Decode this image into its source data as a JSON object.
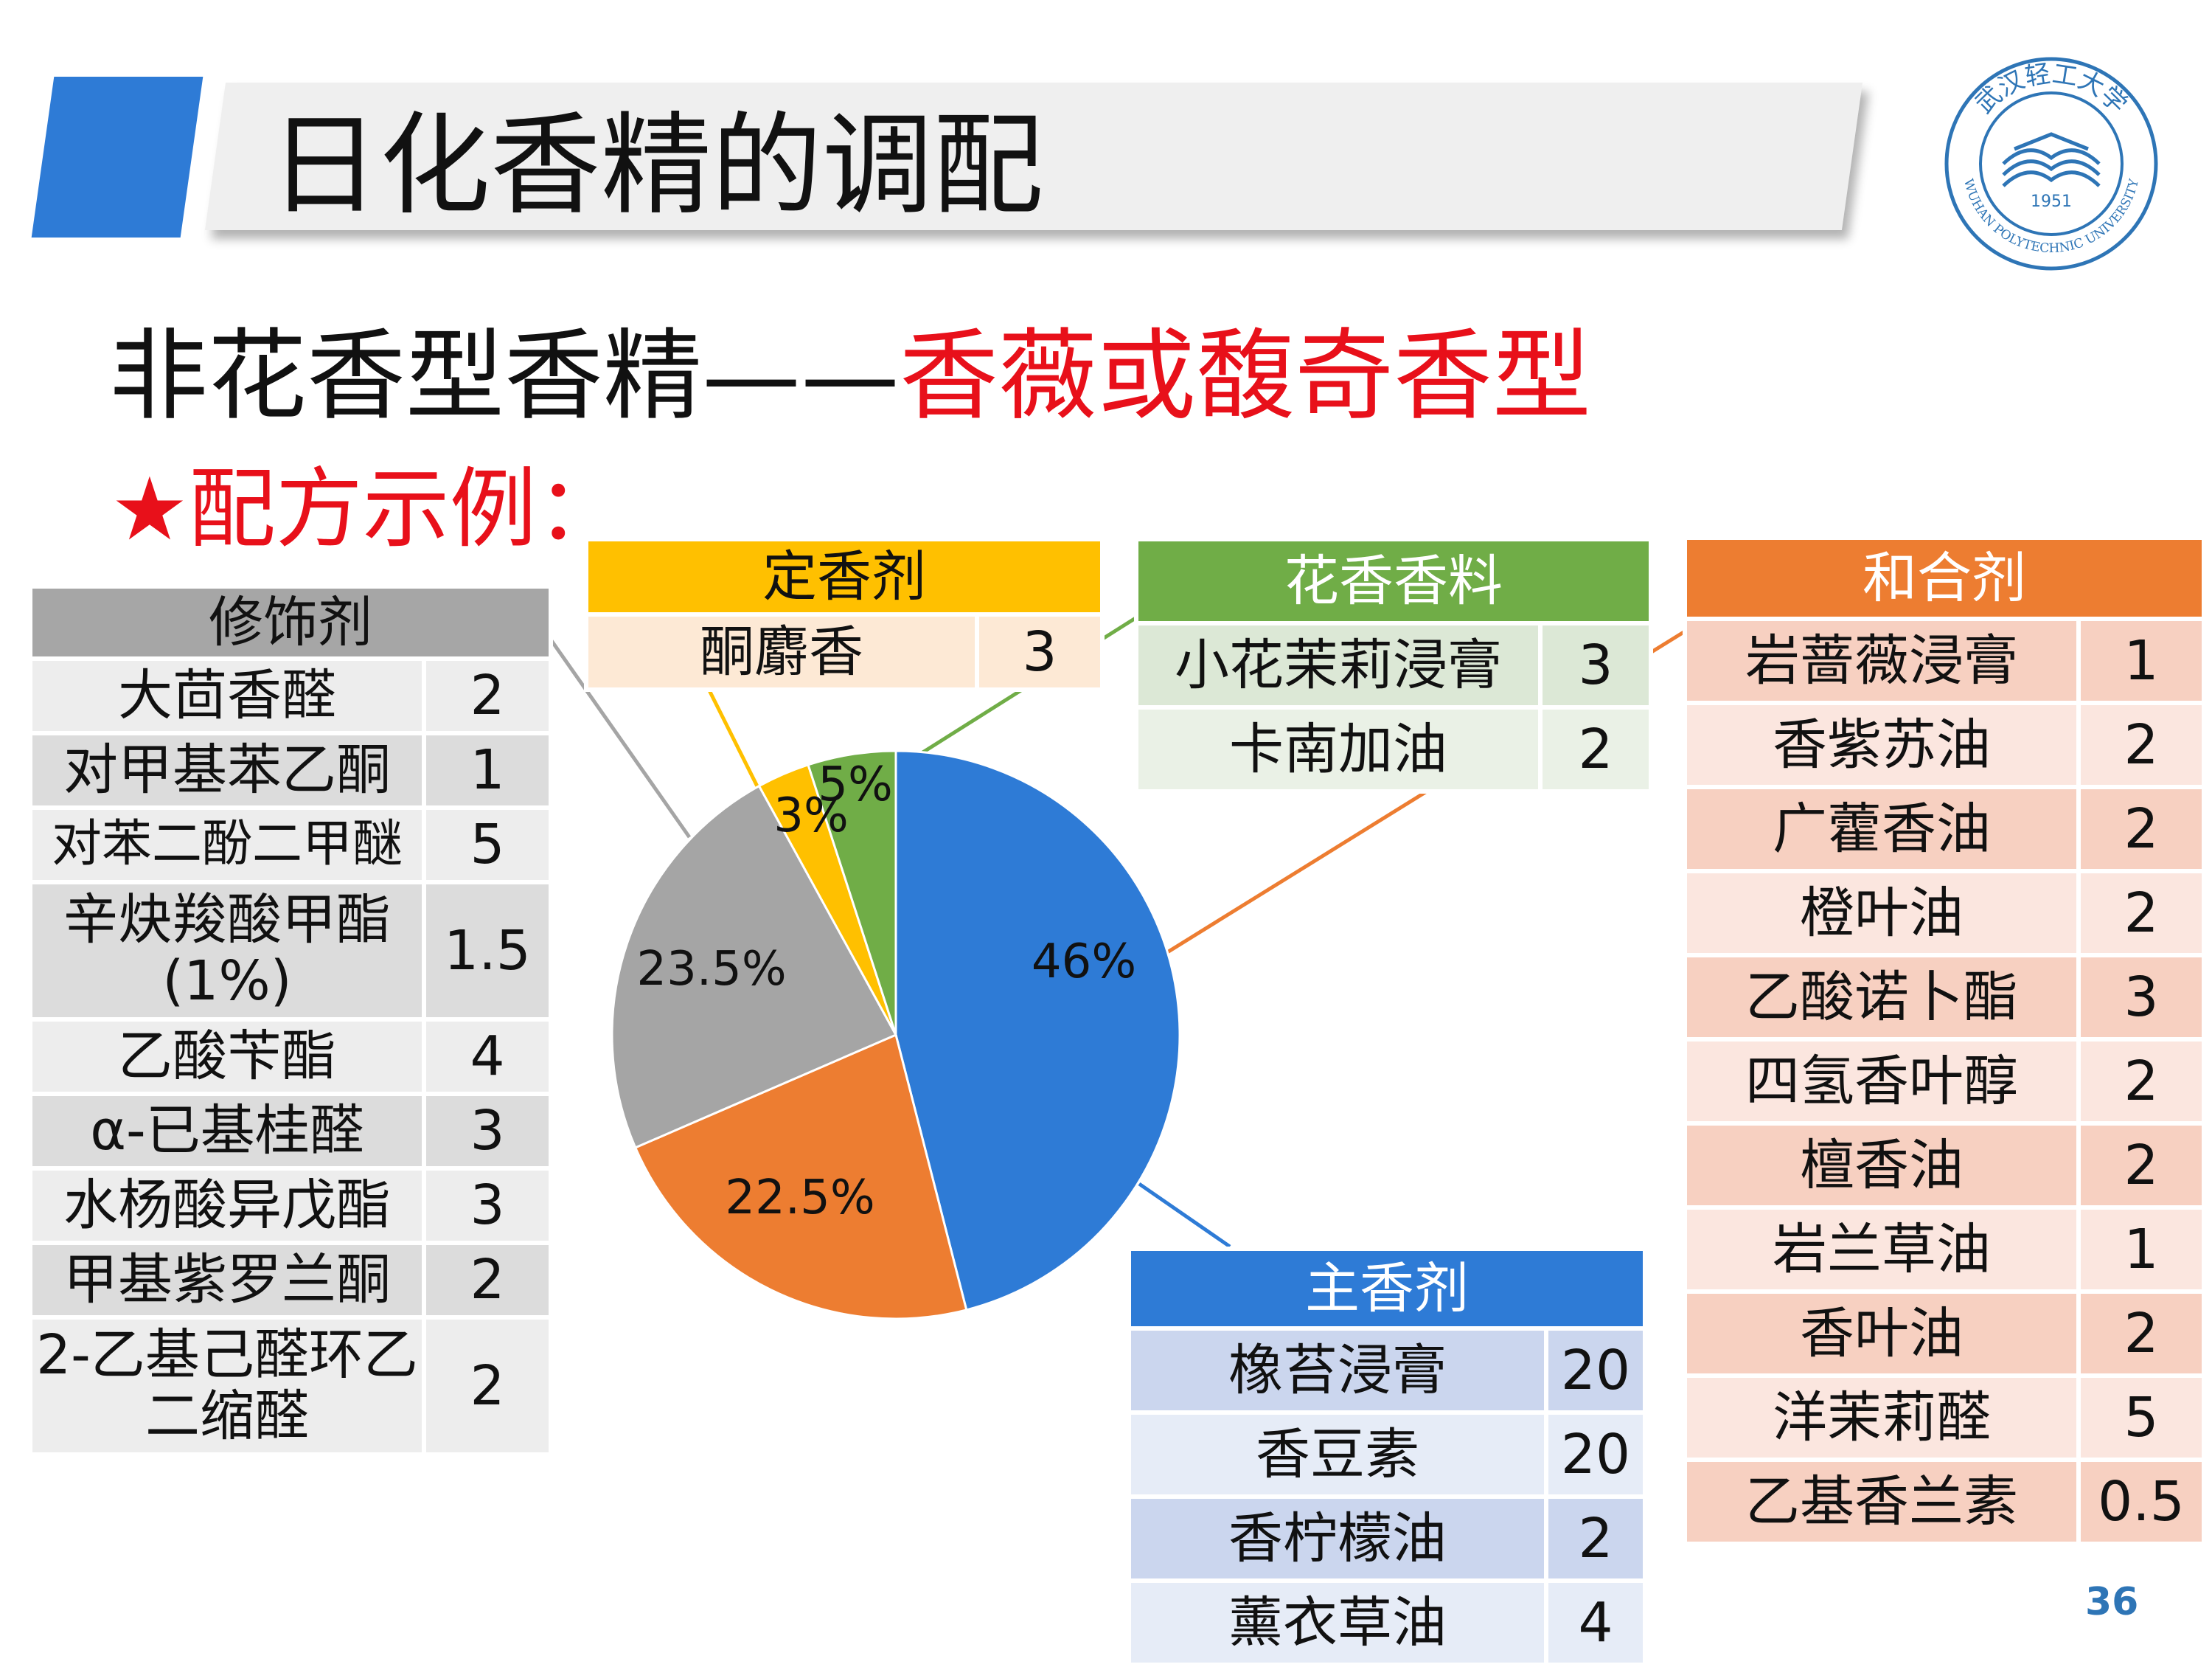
{
  "title": "日化香精的调配",
  "subtitle": {
    "black": "非花香型香精——",
    "red": "香薇或馥奇香型"
  },
  "example_label": "★配方示例：",
  "tables": {
    "modifier": {
      "header": "修饰剂",
      "rows": [
        [
          "大茴香醛",
          "2"
        ],
        [
          "对甲基苯乙酮",
          "1"
        ],
        [
          "对苯二酚二甲醚",
          "5"
        ],
        [
          "辛炔羧酸甲酯(1%)",
          "1.5"
        ],
        [
          "乙酸苄酯",
          "4"
        ],
        [
          "α-已基桂醛",
          "3"
        ],
        [
          "水杨酸异戊酯",
          "3"
        ],
        [
          "甲基紫罗兰酮",
          "2"
        ],
        [
          "2-乙基己醛环乙二缩醛",
          "2"
        ]
      ]
    },
    "fixative": {
      "header": "定香剂",
      "rows": [
        [
          "酮麝香",
          "3"
        ]
      ]
    },
    "floral": {
      "header": "花香香料",
      "rows": [
        [
          "小花茉莉浸膏",
          "3"
        ],
        [
          "卡南加油",
          "2"
        ]
      ]
    },
    "blender": {
      "header": "和合剂",
      "rows": [
        [
          "岩蔷薇浸膏",
          "1"
        ],
        [
          "香紫苏油",
          "2"
        ],
        [
          "广藿香油",
          "2"
        ],
        [
          "橙叶油",
          "2"
        ],
        [
          "乙酸诺卜酯",
          "3"
        ],
        [
          "四氢香叶醇",
          "2"
        ],
        [
          "檀香油",
          "2"
        ],
        [
          "岩兰草油",
          "1"
        ],
        [
          "香叶油",
          "2"
        ],
        [
          "洋茉莉醛",
          "5"
        ],
        [
          "乙基香兰素",
          "0.5"
        ]
      ]
    },
    "main": {
      "header": "主香剂",
      "rows": [
        [
          "橡苔浸膏",
          "20"
        ],
        [
          "香豆素",
          "20"
        ],
        [
          "香柠檬油",
          "2"
        ],
        [
          "薰衣草油",
          "4"
        ]
      ]
    }
  },
  "chart_data": {
    "type": "pie",
    "slices": [
      {
        "label": "46%",
        "value": 46,
        "color": "#2E7BD6"
      },
      {
        "label": "22.5%",
        "value": 22.5,
        "color": "#ED7D31"
      },
      {
        "label": "23.5%",
        "value": 23.5,
        "color": "#A5A5A5"
      },
      {
        "label": "3%",
        "value": 3,
        "color": "#FFC000"
      },
      {
        "label": "5%",
        "value": 5,
        "color": "#70AD47"
      }
    ]
  },
  "logo": {
    "year": "1951",
    "text_en": "WUHAN POLYTECHNIC UNIVERSITY",
    "text_cn": "武汉轻工大学",
    "color": "#2E75B6"
  },
  "page_number": "36"
}
